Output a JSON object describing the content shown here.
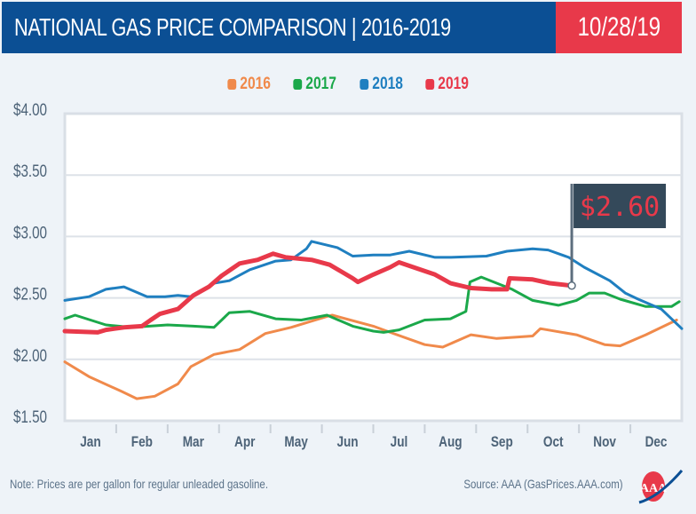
{
  "header": {
    "title": "NATIONAL GAS PRICE COMPARISON | 2016-2019",
    "date": "10/28/19"
  },
  "footer": {
    "note": "Note: Prices are per gallon for regular unleaded gasoline.",
    "source": "Source: AAA (GasPrices.AAA.com)",
    "logo": "AAA"
  },
  "chart_data": {
    "type": "line",
    "title": "NATIONAL GAS PRICE COMPARISON | 2016-2019",
    "xlabel": "",
    "ylabel": "",
    "ylim": [
      1.5,
      4.0
    ],
    "xlim": [
      0,
      12
    ],
    "grid": true,
    "legend_position": "top-center",
    "yticks": [
      4.0,
      3.5,
      3.0,
      2.5,
      2.0,
      1.5
    ],
    "ytick_labels": [
      "$4.00",
      "$3.50",
      "$3.00",
      "$2.50",
      "$2.00",
      "$1.50"
    ],
    "xtick_labels": [
      "Jan",
      "Feb",
      "Mar",
      "Apr",
      "May",
      "Jun",
      "Jul",
      "Aug",
      "Sep",
      "Oct",
      "Nov",
      "Dec"
    ],
    "annotation": {
      "label": "$2.60",
      "x": 9.86,
      "y": 2.6,
      "series": "2019"
    },
    "series": [
      {
        "name": "2016",
        "color": "#f08a4b",
        "x": [
          0,
          0.47,
          1.1,
          1.4,
          1.75,
          2.2,
          2.45,
          2.9,
          3.4,
          3.9,
          4.4,
          5.1,
          5.2,
          6.0,
          6.33,
          7.0,
          7.35,
          7.9,
          8.4,
          9.1,
          9.25,
          9.95,
          10.5,
          10.8,
          11.3,
          11.9
        ],
        "y": [
          1.98,
          1.86,
          1.74,
          1.68,
          1.7,
          1.8,
          1.94,
          2.04,
          2.08,
          2.21,
          2.26,
          2.35,
          2.36,
          2.27,
          2.22,
          2.12,
          2.1,
          2.2,
          2.17,
          2.19,
          2.25,
          2.2,
          2.12,
          2.11,
          2.2,
          2.32
        ]
      },
      {
        "name": "2017",
        "color": "#1ba84a",
        "x": [
          0,
          0.2,
          0.8,
          1.3,
          2.0,
          2.5,
          2.9,
          3.2,
          3.6,
          4.1,
          4.6,
          5.1,
          5.6,
          6.0,
          6.2,
          6.5,
          7.0,
          7.5,
          7.8,
          7.88,
          8.1,
          8.7,
          9.1,
          9.6,
          9.95,
          10.2,
          10.5,
          10.8,
          11.3,
          11.8,
          11.95
        ],
        "y": [
          2.33,
          2.36,
          2.28,
          2.26,
          2.28,
          2.27,
          2.26,
          2.38,
          2.39,
          2.33,
          2.32,
          2.36,
          2.27,
          2.23,
          2.22,
          2.24,
          2.32,
          2.33,
          2.39,
          2.63,
          2.67,
          2.57,
          2.48,
          2.44,
          2.48,
          2.54,
          2.54,
          2.49,
          2.43,
          2.43,
          2.47
        ]
      },
      {
        "name": "2018",
        "color": "#1f7fc0",
        "x": [
          0,
          0.47,
          0.8,
          1.15,
          1.6,
          1.95,
          2.2,
          2.45,
          2.9,
          3.2,
          3.6,
          4.1,
          4.4,
          4.7,
          4.8,
          5.3,
          5.6,
          6.0,
          6.33,
          6.7,
          7.2,
          7.5,
          8.2,
          8.6,
          9.1,
          9.4,
          9.8,
          10.1,
          10.6,
          10.9,
          11.15,
          11.6,
          12.0
        ],
        "y": [
          2.48,
          2.51,
          2.57,
          2.59,
          2.51,
          2.51,
          2.52,
          2.51,
          2.62,
          2.64,
          2.73,
          2.8,
          2.81,
          2.9,
          2.96,
          2.91,
          2.84,
          2.85,
          2.85,
          2.88,
          2.83,
          2.83,
          2.84,
          2.88,
          2.9,
          2.89,
          2.83,
          2.75,
          2.64,
          2.54,
          2.49,
          2.41,
          2.25
        ]
      },
      {
        "name": "2019",
        "color": "#e8394a",
        "x": [
          0,
          0.64,
          0.8,
          1.15,
          1.5,
          1.67,
          1.85,
          2.2,
          2.5,
          2.8,
          3.05,
          3.4,
          3.75,
          4.05,
          4.3,
          4.8,
          5.15,
          5.6,
          5.7,
          6.0,
          6.33,
          6.5,
          6.85,
          7.2,
          7.5,
          7.9,
          8.3,
          8.6,
          8.65,
          9.1,
          9.43,
          9.86
        ],
        "y": [
          2.23,
          2.22,
          2.24,
          2.26,
          2.27,
          2.32,
          2.37,
          2.41,
          2.52,
          2.59,
          2.68,
          2.78,
          2.81,
          2.86,
          2.83,
          2.81,
          2.77,
          2.66,
          2.63,
          2.69,
          2.75,
          2.79,
          2.74,
          2.69,
          2.62,
          2.58,
          2.57,
          2.57,
          2.66,
          2.65,
          2.62,
          2.6
        ]
      }
    ]
  }
}
